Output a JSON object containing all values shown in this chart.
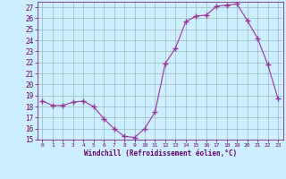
{
  "x": [
    0,
    1,
    2,
    3,
    4,
    5,
    6,
    7,
    8,
    9,
    10,
    11,
    12,
    13,
    14,
    15,
    16,
    17,
    18,
    19,
    20,
    21,
    22,
    23
  ],
  "y": [
    18.5,
    18.1,
    18.1,
    18.4,
    18.5,
    18.0,
    16.9,
    16.0,
    15.3,
    15.2,
    16.0,
    17.5,
    21.9,
    23.3,
    25.7,
    26.2,
    26.3,
    27.1,
    27.2,
    27.3,
    25.8,
    24.2,
    21.8,
    18.7
  ],
  "xlabel": "Windchill (Refroidissement éolien,°C)",
  "ylim_min": 15,
  "ylim_max": 27.5,
  "xlim_min": -0.5,
  "xlim_max": 23.5,
  "yticks": [
    15,
    16,
    17,
    18,
    19,
    20,
    21,
    22,
    23,
    24,
    25,
    26,
    27
  ],
  "xticks": [
    0,
    1,
    2,
    3,
    4,
    5,
    6,
    7,
    8,
    9,
    10,
    11,
    12,
    13,
    14,
    15,
    16,
    17,
    18,
    19,
    20,
    21,
    22,
    23
  ],
  "line_color": "#993399",
  "bg_color": "#cceeff",
  "grid_color": "#99bbbb",
  "label_color": "#660066",
  "tick_color": "#660066",
  "spine_color": "#660066"
}
